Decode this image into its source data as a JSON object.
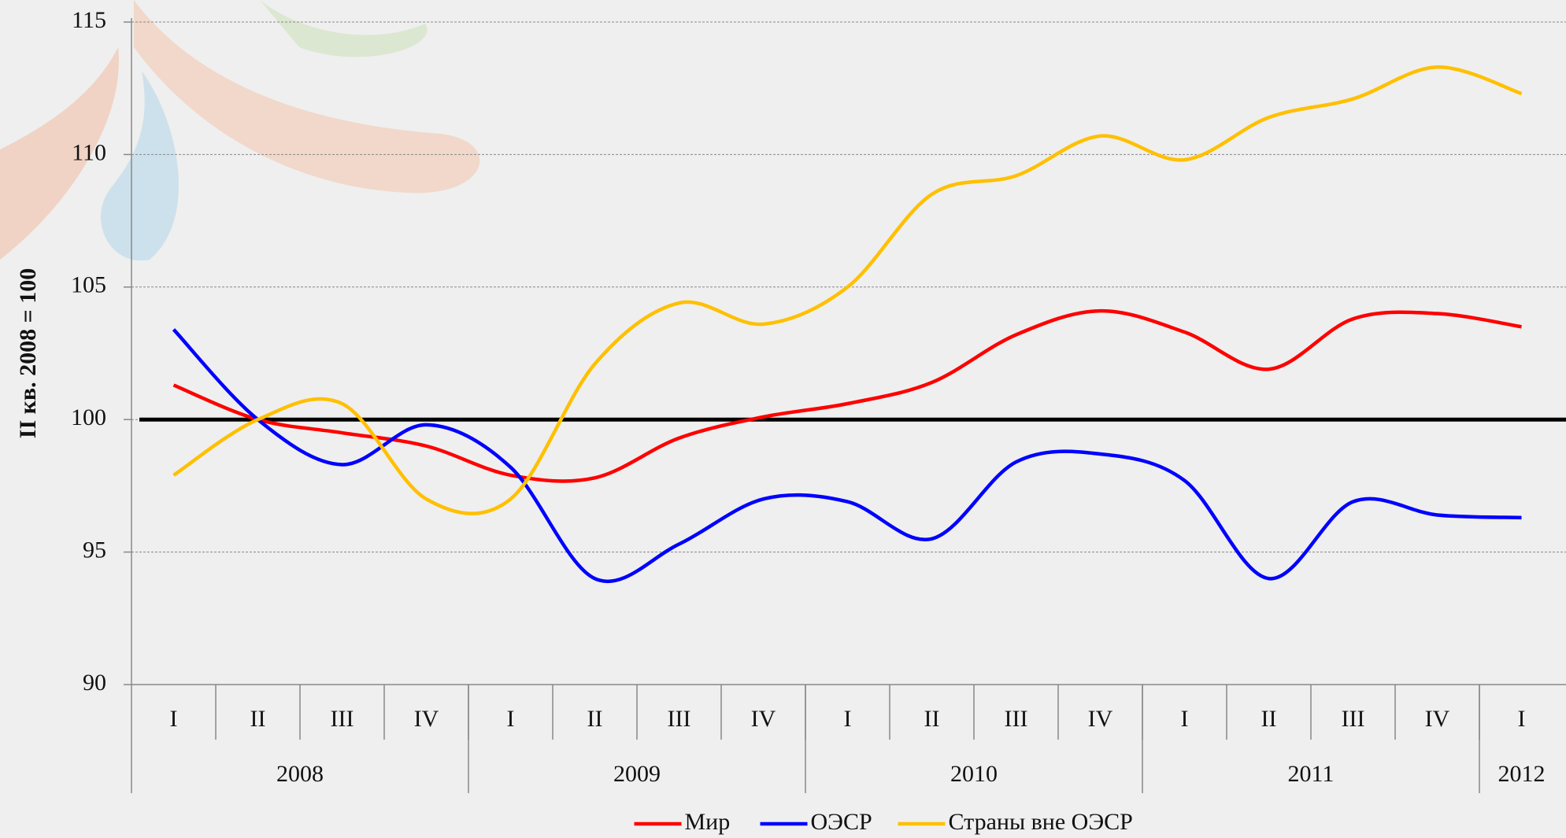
{
  "chart_data": {
    "type": "line",
    "y_label": "II кв. 2008 = 100",
    "categories": [
      "I",
      "II",
      "III",
      "IV",
      "I",
      "II",
      "III",
      "IV",
      "I",
      "II",
      "III",
      "IV",
      "I",
      "II",
      "III",
      "IV",
      "I"
    ],
    "groups": [
      {
        "name": "2008",
        "count": 4
      },
      {
        "name": "2009",
        "count": 4
      },
      {
        "name": "2010",
        "count": 4
      },
      {
        "name": "2011",
        "count": 4
      },
      {
        "name": "2012",
        "count": 1
      }
    ],
    "series": [
      {
        "name": "Мир",
        "color": "#ff0000",
        "values": [
          101.3,
          100.0,
          99.5,
          99.0,
          97.9,
          97.8,
          99.3,
          100.1,
          100.6,
          101.4,
          103.2,
          104.1,
          103.3,
          101.9,
          103.8,
          104.0,
          103.5
        ]
      },
      {
        "name": "ОЭСР",
        "color": "#0000ff",
        "values": [
          103.4,
          100.0,
          98.3,
          99.8,
          98.2,
          94.0,
          95.3,
          97.0,
          96.9,
          95.5,
          98.4,
          98.7,
          97.7,
          94.0,
          96.9,
          96.4,
          96.3
        ]
      },
      {
        "name": "Страны вне ОЭСР",
        "color": "#ffc000",
        "values": [
          97.9,
          100.0,
          100.6,
          97.0,
          97.0,
          102.1,
          104.4,
          103.6,
          105.0,
          108.5,
          109.2,
          110.7,
          109.8,
          111.4,
          112.1,
          113.3,
          112.3
        ]
      }
    ],
    "reference_line": 100,
    "ylim": [
      90,
      115
    ],
    "yticks": [
      90,
      95,
      100,
      105,
      110,
      115
    ],
    "grid": true,
    "legend": "bottom",
    "smooth": true
  }
}
